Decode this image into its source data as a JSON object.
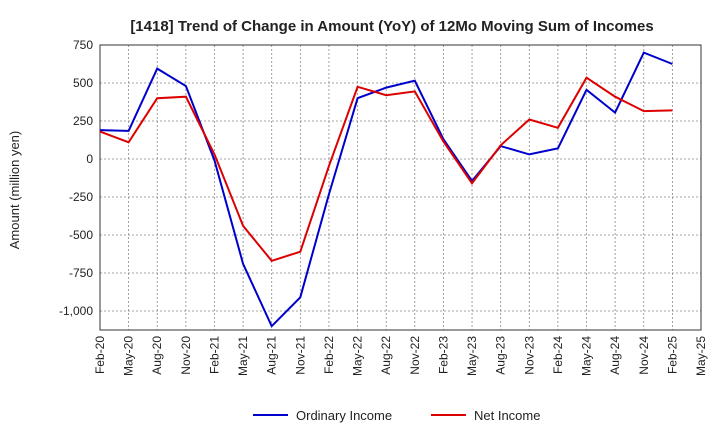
{
  "chart_data": {
    "type": "line",
    "title": "[1418]  Trend of Change in Amount (YoY) of 12Mo Moving Sum of Incomes",
    "ylabel": "Amount (million yen)",
    "xlabel": "",
    "ylim": [
      -1125,
      750
    ],
    "yticks": [
      750,
      500,
      250,
      0,
      -250,
      -500,
      -750,
      -1000
    ],
    "ytick_labels": [
      "750",
      "500",
      "250",
      "0",
      "-250",
      "-500",
      "-750",
      "-1,000"
    ],
    "categories": [
      "Feb-20",
      "May-20",
      "Aug-20",
      "Nov-20",
      "Feb-21",
      "May-21",
      "Aug-21",
      "Nov-21",
      "Feb-22",
      "May-22",
      "Aug-22",
      "Nov-22",
      "Feb-23",
      "May-23",
      "Aug-23",
      "Nov-23",
      "Feb-24",
      "May-24",
      "Aug-24",
      "Nov-24",
      "Feb-25",
      "May-25"
    ],
    "grid": true,
    "legend_position": "bottom",
    "series": [
      {
        "name": "Ordinary Income",
        "color": "#0000cc",
        "values": [
          190,
          185,
          595,
          480,
          -10,
          -690,
          -1100,
          -910,
          -230,
          400,
          470,
          515,
          130,
          -145,
          85,
          30,
          70,
          455,
          305,
          700,
          625,
          null
        ]
      },
      {
        "name": "Net Income",
        "color": "#dd0000",
        "values": [
          180,
          110,
          400,
          410,
          30,
          -440,
          -670,
          -610,
          -45,
          475,
          420,
          445,
          115,
          -160,
          90,
          260,
          205,
          535,
          410,
          315,
          320,
          null
        ]
      }
    ]
  }
}
